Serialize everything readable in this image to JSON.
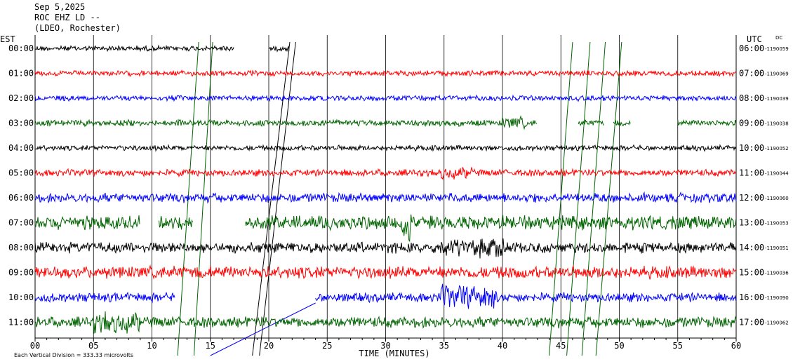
{
  "header": {
    "date": "Sep 5,2025",
    "station": "ROC EHZ LD --",
    "network": "(LDEO, Rochester)"
  },
  "chart_data": {
    "type": "line",
    "left_zone": "EST",
    "right_zone": "UTC",
    "dc_label": "DC",
    "xlabel": "TIME (MINUTES)",
    "xlim": [
      0,
      60
    ],
    "x_ticks": [
      "00",
      "05",
      "10",
      "15",
      "20",
      "25",
      "30",
      "35",
      "40",
      "45",
      "50",
      "55",
      "60"
    ],
    "scale_note": "Each Vertical Division =  333.33 microvolts",
    "colors": [
      "#000000",
      "#ff0000",
      "#0000ff",
      "#006400"
    ],
    "rows": [
      {
        "est": "00:00",
        "utc": "06:00",
        "dc": "-1190059",
        "amp": 0.35,
        "segments": [
          [
            0,
            17
          ],
          [
            20,
            21.8
          ]
        ]
      },
      {
        "est": "01:00",
        "utc": "07:00",
        "dc": "-1190069",
        "amp": 0.35,
        "segments": [
          [
            0,
            60
          ]
        ]
      },
      {
        "est": "02:00",
        "utc": "08:00",
        "dc": "-1190039",
        "amp": 0.35,
        "segments": [
          [
            0,
            60
          ]
        ]
      },
      {
        "est": "03:00",
        "utc": "09:00",
        "dc": "-1190038",
        "amp": 0.4,
        "segments": [
          [
            0,
            43
          ],
          [
            46.5,
            48.7
          ],
          [
            49.5,
            51
          ],
          [
            55,
            60
          ]
        ]
      },
      {
        "est": "04:00",
        "utc": "10:00",
        "dc": "-1190052",
        "amp": 0.35,
        "segments": [
          [
            0,
            60
          ]
        ]
      },
      {
        "est": "05:00",
        "utc": "11:00",
        "dc": "-1190044",
        "amp": 0.45,
        "segments": [
          [
            0,
            60
          ]
        ]
      },
      {
        "est": "06:00",
        "utc": "12:00",
        "dc": "-1190060",
        "amp": 0.6,
        "segments": [
          [
            0,
            60
          ]
        ]
      },
      {
        "est": "07:00",
        "utc": "13:00",
        "dc": "-1190053",
        "amp": 0.9,
        "segments": [
          [
            0,
            9
          ],
          [
            10.6,
            13.5
          ],
          [
            18,
            60
          ]
        ]
      },
      {
        "est": "08:00",
        "utc": "14:00",
        "dc": "-1190051",
        "amp": 0.7,
        "segments": [
          [
            0,
            60
          ]
        ]
      },
      {
        "est": "09:00",
        "utc": "15:00",
        "dc": "-1190036",
        "amp": 0.8,
        "segments": [
          [
            0,
            60
          ]
        ]
      },
      {
        "est": "10:00",
        "utc": "16:00",
        "dc": "-1190090",
        "amp": 0.6,
        "segments": [
          [
            0,
            12
          ],
          [
            24,
            60
          ]
        ]
      },
      {
        "est": "11:00",
        "utc": "17:00",
        "dc": "-1190062",
        "amp": 0.7,
        "segments": [
          [
            0,
            60
          ]
        ]
      }
    ],
    "events": [
      {
        "row": 7,
        "start": 31.3,
        "end": 32.2,
        "scale": 3.5
      },
      {
        "row": 8,
        "start": 34.5,
        "end": 40.5,
        "scale": 1.8
      },
      {
        "row": 10,
        "start": 34.5,
        "end": 39.5,
        "scale": 2.6
      },
      {
        "row": 11,
        "start": 5,
        "end": 9,
        "scale": 2.0
      },
      {
        "row": 5,
        "start": 34.5,
        "end": 37.5,
        "scale": 1.8
      },
      {
        "row": 3,
        "start": 40,
        "end": 42,
        "scale": 2.0
      }
    ]
  }
}
